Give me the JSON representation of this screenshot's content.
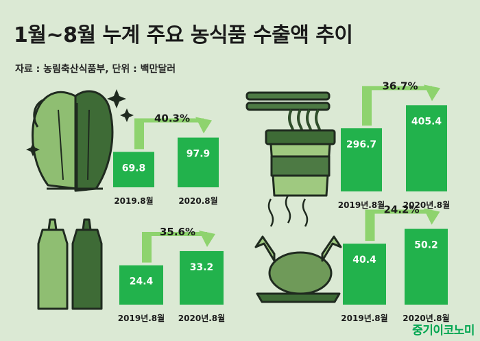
{
  "title": "1월~8월 누계 주요 농식품 수출액 추이",
  "source": "자료 : 농림축산식품부, 단위 : 백만달러",
  "brand": "중기이코노미",
  "colors": {
    "background": "#dbe9d4",
    "bar": "#22b24c",
    "bar_label": "#ffffff",
    "arrow": "#8ed36e",
    "text": "#1a1a1a"
  },
  "icons": [
    "cabbage-icon",
    "noodle-cup-icon",
    "sauce-bottles-icon",
    "roast-chicken-icon"
  ],
  "chart_data": [
    {
      "type": "bar",
      "categories": [
        "2019.8월",
        "2020.8월"
      ],
      "values": [
        69.8,
        97.9
      ],
      "value_labels": [
        "69.8",
        "97.9"
      ],
      "growth_label": "40.3%"
    },
    {
      "type": "bar",
      "categories": [
        "2019년.8월",
        "2020년.8월"
      ],
      "values": [
        296.7,
        405.4
      ],
      "value_labels": [
        "296.7",
        "405.4"
      ],
      "growth_label": "36.7%"
    },
    {
      "type": "bar",
      "categories": [
        "2019년.8월",
        "2020년.8월"
      ],
      "values": [
        24.4,
        33.2
      ],
      "value_labels": [
        "24.4",
        "33.2"
      ],
      "growth_label": "35.6%"
    },
    {
      "type": "bar",
      "categories": [
        "2019년.8월",
        "2020년.8월"
      ],
      "values": [
        40.4,
        50.2
      ],
      "value_labels": [
        "40.4",
        "50.2"
      ],
      "growth_label": "24.2%"
    }
  ]
}
